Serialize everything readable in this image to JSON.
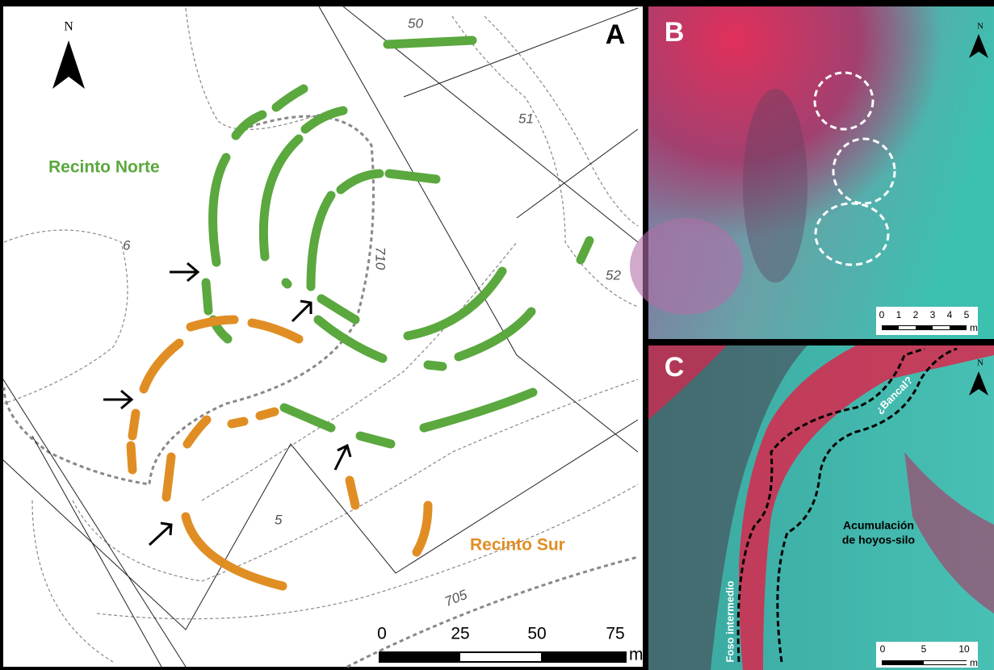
{
  "panels": [
    {
      "letter": "A",
      "north": "N",
      "contour_labels": [
        "50",
        "51",
        "52",
        "6",
        "710",
        "5",
        "705"
      ],
      "enclosures": [
        "Recinto Norte",
        "Recinto Sur"
      ],
      "scale": {
        "ticks": [
          "0",
          "25",
          "50",
          "75"
        ],
        "unit": "m"
      }
    },
    {
      "letter": "B",
      "north": "N",
      "scale": {
        "ticks": [
          "0",
          "1",
          "2",
          "3",
          "4",
          "5"
        ],
        "unit": "m"
      }
    },
    {
      "letter": "C",
      "north": "N",
      "annotations": [
        "¿Bancal?",
        "Acumulación",
        "de hoyos-silo",
        "Foso intermedio"
      ],
      "scale": {
        "ticks": [
          "0",
          "5",
          "10"
        ],
        "unit": "m"
      }
    }
  ]
}
